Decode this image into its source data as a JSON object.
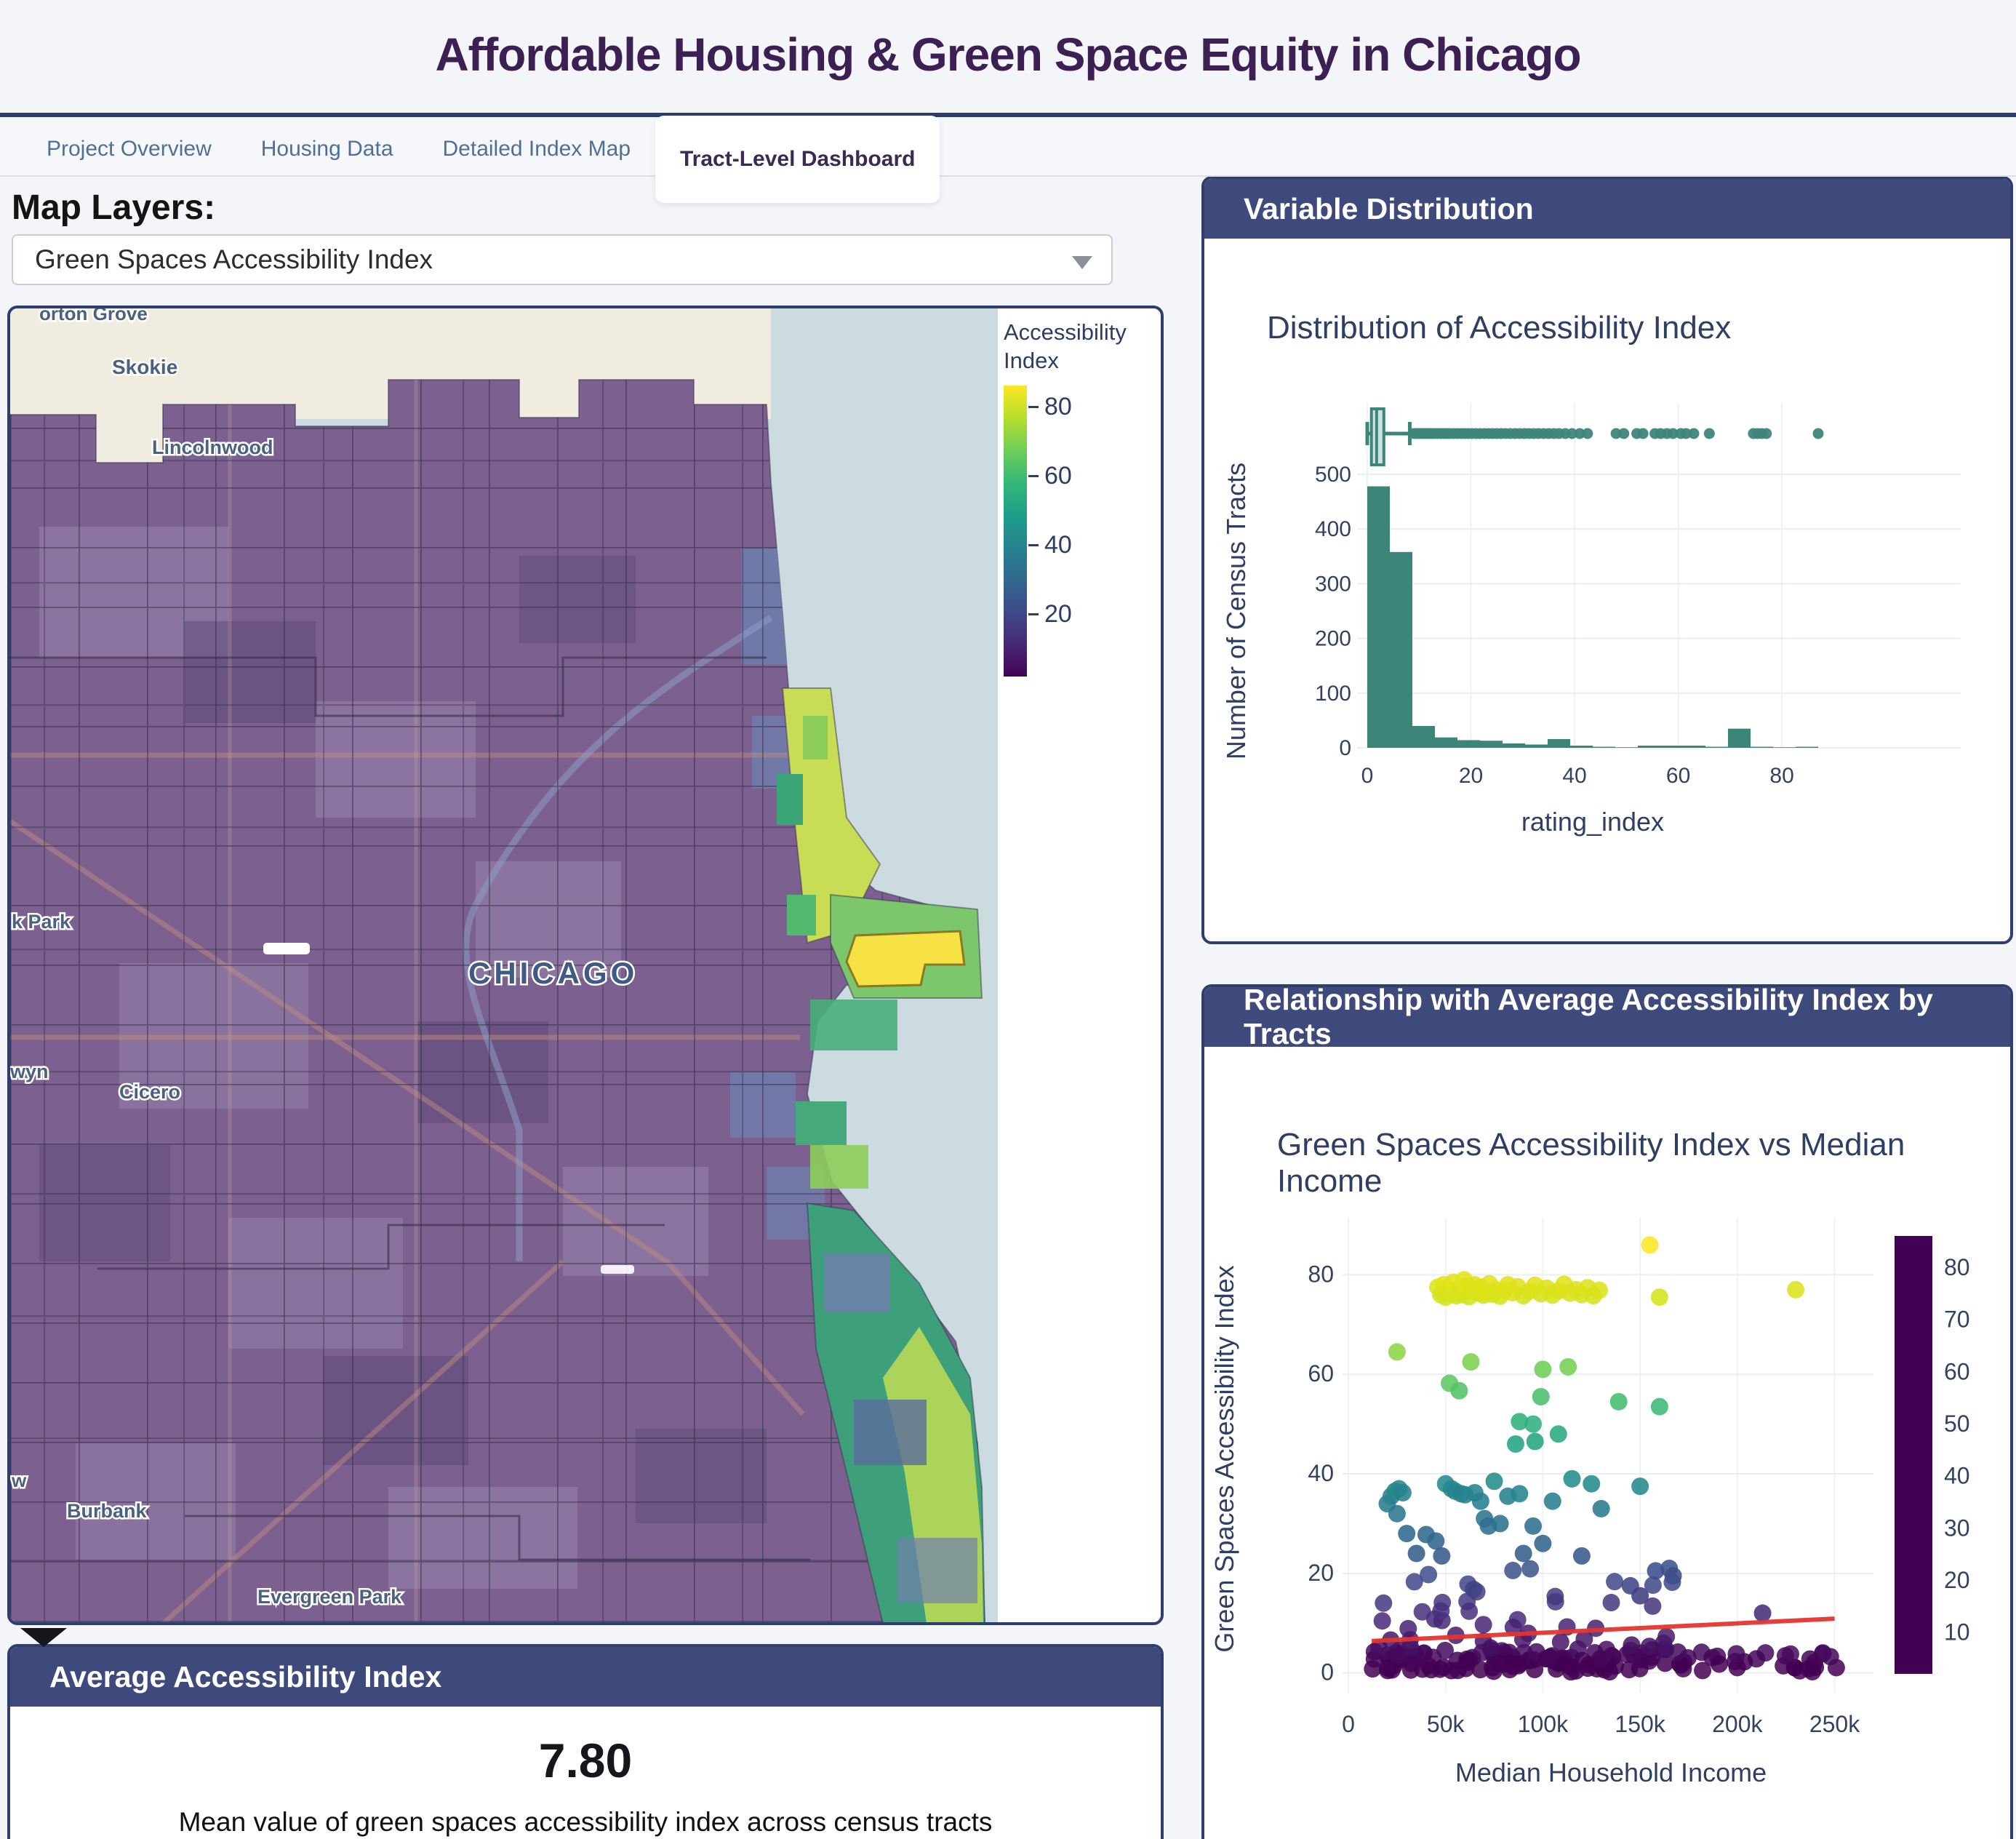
{
  "header": {
    "title": "Affordable Housing & Green Space Equity in Chicago"
  },
  "tabs": [
    {
      "label": "Project Overview",
      "active": false
    },
    {
      "label": "Housing Data",
      "active": false
    },
    {
      "label": "Detailed Index Map",
      "active": false
    },
    {
      "label": "Tract-Level Dashboard",
      "active": true
    }
  ],
  "map_section": {
    "layers_label": "Map Layers:",
    "layer_selected": "Green Spaces Accessibility Index",
    "legend": {
      "title_line1": "Accessibility",
      "title_line2": "Index",
      "ticks": [
        "80",
        "60",
        "40",
        "20"
      ]
    },
    "labels": {
      "morton_grove": "orton Grove",
      "skokie": "Skokie",
      "lincolnwood": "Lincolnwood",
      "oak_park": "k Park",
      "berwyn": "wyn",
      "cicero": "Cicero",
      "chicago": "CHICAGO",
      "burbank": "Burbank",
      "evergreen_park": "Evergreen Park",
      "w": "w"
    }
  },
  "avg_card": {
    "header": "Average Accessibility Index",
    "value": "7.80",
    "description": "Mean value of green spaces accessibility index across census tracts"
  },
  "dist_card": {
    "header": "Variable Distribution"
  },
  "rel_card": {
    "header": "Relationship with Average Accessibility Index by Tracts"
  },
  "colors": {
    "header_navy": "#3d4a7b",
    "border_navy": "#2e3f6e",
    "teal": "#3e8579",
    "accent_red": "#e5342e",
    "lake": "#cbdbe0",
    "city_purple": "#7c6190",
    "cream": "#f0ecdf",
    "viridis": [
      "#440154",
      "#482878",
      "#3e4a89",
      "#31688e",
      "#26828e",
      "#1f9e89",
      "#35b779",
      "#6ece58",
      "#b5de2b",
      "#dfe318",
      "#fde725"
    ]
  },
  "chart_data": [
    {
      "type": "histogram",
      "title": "Distribution of Accessibility Index",
      "xlabel": "rating_index",
      "ylabel": "Number of Census Tracts",
      "bin_start": 0,
      "bin_width": 4.35,
      "values": [
        478,
        358,
        40,
        19,
        14,
        13,
        8,
        6,
        16,
        4,
        2,
        1,
        4,
        4,
        4,
        2,
        35,
        2,
        1,
        2
      ],
      "xticks": [
        0,
        20,
        40,
        60,
        80
      ],
      "yticks": [
        0,
        100,
        200,
        300,
        400,
        500
      ],
      "xlim": [
        0,
        87
      ],
      "ylim": [
        0,
        500
      ],
      "grid": true,
      "box": {
        "min": 0,
        "q1": 0.8,
        "median": 1.8,
        "q3": 3.2,
        "whisker_high": 8.2,
        "outliers": [
          9,
          9.5,
          10,
          10.5,
          11,
          11.5,
          12,
          12.5,
          13,
          13.6,
          14.2,
          14.8,
          15.4,
          16,
          16.7,
          17.4,
          18.1,
          18.8,
          19.5,
          20.2,
          21,
          21.8,
          22.6,
          23.4,
          24.2,
          25,
          25.8,
          26.7,
          27.6,
          28.5,
          29.4,
          30.3,
          31.2,
          32.1,
          33,
          34,
          35,
          36,
          37,
          38.2,
          39.5,
          41,
          42.5,
          48,
          49.5,
          52,
          53.2,
          55.5,
          56.6,
          57.8,
          59,
          60.5,
          61.5,
          63,
          66,
          74.5,
          75.3,
          76.1,
          77,
          87
        ]
      }
    },
    {
      "type": "scatter",
      "title": "Green Spaces Accessibility Index vs Median Income",
      "xlabel": "Median Household Income",
      "ylabel": "Green Spaces Accessibility Index",
      "xticks": [
        0,
        50000,
        100000,
        150000,
        200000,
        250000
      ],
      "xtick_labels": [
        "0",
        "50k",
        "100k",
        "150k",
        "200k",
        "250k"
      ],
      "yticks": [
        0,
        20,
        40,
        60,
        80
      ],
      "xlim": [
        0,
        270000
      ],
      "ylim": [
        -4,
        90
      ],
      "grid": true,
      "colorbar_ticks": [
        80,
        70,
        60,
        50,
        40,
        30,
        20,
        10
      ],
      "color_value_range": [
        2,
        86
      ],
      "trend": {
        "x": [
          12000,
          250000
        ],
        "y": [
          6.4,
          10.9
        ]
      },
      "points": [
        [
          46000,
          77.5
        ],
        [
          47500,
          76
        ],
        [
          49000,
          78
        ],
        [
          50000,
          75.5
        ],
        [
          51500,
          77
        ],
        [
          53000,
          76.2
        ],
        [
          54000,
          78.5
        ],
        [
          55500,
          75.8
        ],
        [
          57000,
          77.2
        ],
        [
          58000,
          76
        ],
        [
          59500,
          79
        ],
        [
          61000,
          77.8
        ],
        [
          62000,
          75.6
        ],
        [
          63500,
          76.8
        ],
        [
          65000,
          78
        ],
        [
          66500,
          76.3
        ],
        [
          68000,
          77.5
        ],
        [
          69500,
          75.9
        ],
        [
          71000,
          76.6
        ],
        [
          72500,
          78.2
        ],
        [
          74000,
          76.1
        ],
        [
          76000,
          77
        ],
        [
          78000,
          75.7
        ],
        [
          80000,
          76.9
        ],
        [
          82000,
          78
        ],
        [
          84500,
          76.4
        ],
        [
          87000,
          77.6
        ],
        [
          90000,
          75.8
        ],
        [
          93000,
          76.7
        ],
        [
          96000,
          77.9
        ],
        [
          99000,
          76.2
        ],
        [
          102000,
          77.3
        ],
        [
          105000,
          75.9
        ],
        [
          108000,
          76.8
        ],
        [
          111000,
          78.1
        ],
        [
          114000,
          76.3
        ],
        [
          117000,
          77
        ],
        [
          120000,
          76
        ],
        [
          123000,
          77.4
        ],
        [
          126000,
          75.8
        ],
        [
          129000,
          76.9
        ],
        [
          160000,
          75.5
        ],
        [
          230000,
          77
        ],
        [
          155000,
          86
        ],
        [
          25000,
          64.5
        ],
        [
          63000,
          62.5
        ],
        [
          52000,
          58.2
        ],
        [
          57000,
          56.7
        ],
        [
          100000,
          61
        ],
        [
          113000,
          61.5
        ],
        [
          99000,
          55.5
        ],
        [
          139000,
          54.5
        ],
        [
          160000,
          53.5
        ],
        [
          88000,
          50.5
        ],
        [
          95000,
          50
        ],
        [
          108000,
          48
        ],
        [
          86000,
          46
        ],
        [
          96000,
          46.5
        ],
        [
          20000,
          34
        ],
        [
          22000,
          35.5
        ],
        [
          24000,
          36.5
        ],
        [
          26000,
          37
        ],
        [
          28000,
          36.2
        ],
        [
          25000,
          32
        ],
        [
          30000,
          28
        ],
        [
          50000,
          38
        ],
        [
          53000,
          37
        ],
        [
          55000,
          36.5
        ],
        [
          58000,
          36
        ],
        [
          60000,
          35.8
        ],
        [
          65000,
          36.2
        ],
        [
          68000,
          34.5
        ],
        [
          70000,
          31
        ],
        [
          72000,
          29.5
        ],
        [
          75000,
          38.5
        ],
        [
          78000,
          30
        ],
        [
          82000,
          35.5
        ],
        [
          88000,
          36
        ],
        [
          95000,
          29.5
        ],
        [
          100000,
          26
        ],
        [
          105000,
          34.5
        ],
        [
          115000,
          39
        ],
        [
          125000,
          38
        ],
        [
          130000,
          33
        ],
        [
          150000,
          37.5
        ],
        [
          45000,
          26.5
        ],
        [
          40000,
          27.8
        ],
        [
          35000,
          24
        ],
        [
          48000,
          23.5
        ],
        [
          90000,
          24
        ],
        [
          120000,
          23.5
        ],
        [
          145000,
          17.5
        ],
        [
          150000,
          15.5
        ],
        [
          165000,
          21
        ],
        [
          167000,
          19.5
        ],
        [
          158000,
          20.5
        ],
        [
          213000,
          12
        ]
      ],
      "bands": [
        {
          "count": 120,
          "x": [
            12000,
            175000
          ],
          "y": [
            0.2,
            4.8
          ],
          "pow": 1,
          "seed": 11
        },
        {
          "count": 26,
          "x": [
            175000,
            252000
          ],
          "y": [
            0.2,
            4.2
          ],
          "pow": 1,
          "seed": 23
        },
        {
          "count": 44,
          "x": [
            14000,
            168000
          ],
          "y": [
            5,
            21
          ],
          "pow": 1.9,
          "seed": 37
        }
      ]
    }
  ]
}
